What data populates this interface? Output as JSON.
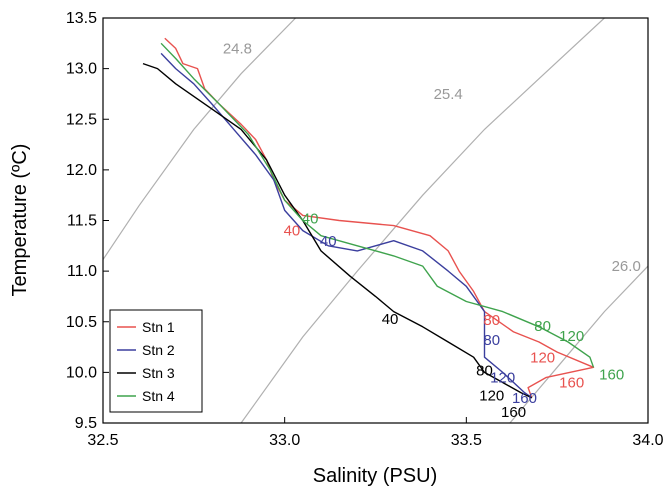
{
  "chart_data": {
    "type": "line",
    "title": "",
    "xlabel": "Salinity (PSU)",
    "ylabel": "Temperature (ºC)",
    "xlim": [
      32.5,
      34.0
    ],
    "ylim": [
      9.5,
      13.5
    ],
    "xticks": [
      "32.5",
      "33.0",
      "33.5",
      "34.0"
    ],
    "yticks": [
      "9.5",
      "10.0",
      "10.5",
      "11.0",
      "11.5",
      "12.0",
      "12.5",
      "13.0",
      "13.5"
    ],
    "grid": false,
    "legend_position": "bottom-left",
    "density_isolines": [
      {
        "label": "24.8",
        "color": "#999999",
        "points": [
          [
            32.46,
            10.9
          ],
          [
            32.6,
            11.65
          ],
          [
            32.75,
            12.4
          ],
          [
            32.88,
            12.95
          ],
          [
            33.03,
            13.5
          ]
        ],
        "label_at": [
          32.87,
          13.15
        ]
      },
      {
        "label": "25.4",
        "color": "#999999",
        "points": [
          [
            32.88,
            9.5
          ],
          [
            33.05,
            10.35
          ],
          [
            33.2,
            11.0
          ],
          [
            33.38,
            11.75
          ],
          [
            33.55,
            12.4
          ],
          [
            33.7,
            12.9
          ],
          [
            33.88,
            13.5
          ]
        ],
        "label_at": [
          33.45,
          12.7
        ]
      },
      {
        "label": "26.0",
        "color": "#999999",
        "points": [
          [
            33.62,
            9.5
          ],
          [
            33.75,
            10.05
          ],
          [
            33.88,
            10.6
          ],
          [
            34.0,
            11.05
          ]
        ],
        "label_at": [
          33.94,
          11.0
        ]
      }
    ],
    "series": [
      {
        "name": "Stn 1",
        "color": "#e8524f",
        "points": [
          [
            32.67,
            13.3
          ],
          [
            32.7,
            13.2
          ],
          [
            32.72,
            13.05
          ],
          [
            32.76,
            13.0
          ],
          [
            32.78,
            12.8
          ],
          [
            32.82,
            12.65
          ],
          [
            32.88,
            12.45
          ],
          [
            32.92,
            12.3
          ],
          [
            32.95,
            12.1
          ],
          [
            32.97,
            11.9
          ],
          [
            33.0,
            11.7
          ],
          [
            33.05,
            11.55
          ],
          [
            33.15,
            11.5
          ],
          [
            33.3,
            11.45
          ],
          [
            33.4,
            11.35
          ],
          [
            33.45,
            11.2
          ],
          [
            33.48,
            11.0
          ],
          [
            33.52,
            10.8
          ],
          [
            33.55,
            10.6
          ],
          [
            33.63,
            10.4
          ],
          [
            33.7,
            10.3
          ],
          [
            33.75,
            10.2
          ],
          [
            33.85,
            10.05
          ],
          [
            33.72,
            9.95
          ],
          [
            33.67,
            9.85
          ],
          [
            33.68,
            9.75
          ]
        ],
        "depth_labels": [
          {
            "text": "40",
            "at": [
              33.02,
              11.35
            ]
          },
          {
            "text": "80",
            "at": [
              33.57,
              10.47
            ]
          },
          {
            "text": "120",
            "at": [
              33.71,
              10.1
            ]
          },
          {
            "text": "160",
            "at": [
              33.79,
              9.85
            ]
          }
        ]
      },
      {
        "name": "Stn 2",
        "color": "#3b3f9e",
        "points": [
          [
            32.66,
            13.15
          ],
          [
            32.7,
            13.0
          ],
          [
            32.75,
            12.85
          ],
          [
            32.8,
            12.65
          ],
          [
            32.86,
            12.4
          ],
          [
            32.92,
            12.15
          ],
          [
            32.97,
            11.9
          ],
          [
            33.0,
            11.6
          ],
          [
            33.05,
            11.4
          ],
          [
            33.12,
            11.25
          ],
          [
            33.2,
            11.2
          ],
          [
            33.25,
            11.25
          ],
          [
            33.3,
            11.3
          ],
          [
            33.38,
            11.2
          ],
          [
            33.45,
            11.0
          ],
          [
            33.5,
            10.85
          ],
          [
            33.55,
            10.6
          ],
          [
            33.55,
            10.3
          ],
          [
            33.55,
            10.15
          ],
          [
            33.6,
            10.0
          ],
          [
            33.66,
            9.8
          ],
          [
            33.68,
            9.75
          ]
        ],
        "depth_labels": [
          {
            "text": "40",
            "at": [
              33.12,
              11.25
            ]
          },
          {
            "text": "80",
            "at": [
              33.57,
              10.27
            ]
          },
          {
            "text": "120",
            "at": [
              33.6,
              9.9
            ]
          },
          {
            "text": "160",
            "at": [
              33.66,
              9.7
            ]
          }
        ]
      },
      {
        "name": "Stn 3",
        "color": "#000000",
        "points": [
          [
            32.61,
            13.05
          ],
          [
            32.65,
            13.0
          ],
          [
            32.7,
            12.85
          ],
          [
            32.8,
            12.6
          ],
          [
            32.88,
            12.4
          ],
          [
            32.95,
            12.1
          ],
          [
            33.0,
            11.75
          ],
          [
            33.05,
            11.5
          ],
          [
            33.1,
            11.2
          ],
          [
            33.18,
            10.95
          ],
          [
            33.25,
            10.75
          ],
          [
            33.3,
            10.6
          ],
          [
            33.38,
            10.45
          ],
          [
            33.45,
            10.3
          ],
          [
            33.52,
            10.15
          ],
          [
            33.55,
            10.0
          ],
          [
            33.6,
            9.9
          ],
          [
            33.65,
            9.8
          ],
          [
            33.68,
            9.75
          ]
        ],
        "depth_labels": [
          {
            "text": "40",
            "at": [
              33.29,
              10.48
            ]
          },
          {
            "text": "80",
            "at": [
              33.55,
              9.97
            ]
          },
          {
            "text": "120",
            "at": [
              33.57,
              9.72
            ]
          },
          {
            "text": "160",
            "at": [
              33.63,
              9.56
            ]
          }
        ]
      },
      {
        "name": "Stn 4",
        "color": "#3fa34d",
        "points": [
          [
            32.66,
            13.25
          ],
          [
            32.7,
            13.1
          ],
          [
            32.75,
            12.9
          ],
          [
            32.82,
            12.65
          ],
          [
            32.9,
            12.35
          ],
          [
            32.96,
            12.0
          ],
          [
            33.0,
            11.7
          ],
          [
            33.05,
            11.5
          ],
          [
            33.1,
            11.35
          ],
          [
            33.2,
            11.25
          ],
          [
            33.3,
            11.15
          ],
          [
            33.38,
            11.05
          ],
          [
            33.42,
            10.85
          ],
          [
            33.5,
            10.7
          ],
          [
            33.6,
            10.6
          ],
          [
            33.7,
            10.45
          ],
          [
            33.78,
            10.3
          ],
          [
            33.84,
            10.15
          ],
          [
            33.85,
            10.05
          ]
        ],
        "depth_labels": [
          {
            "text": "40",
            "at": [
              33.07,
              11.47
            ]
          },
          {
            "text": "80",
            "at": [
              33.71,
              10.41
            ]
          },
          {
            "text": "120",
            "at": [
              33.79,
              10.31
            ]
          },
          {
            "text": "160",
            "at": [
              33.9,
              9.93
            ]
          }
        ]
      }
    ]
  }
}
